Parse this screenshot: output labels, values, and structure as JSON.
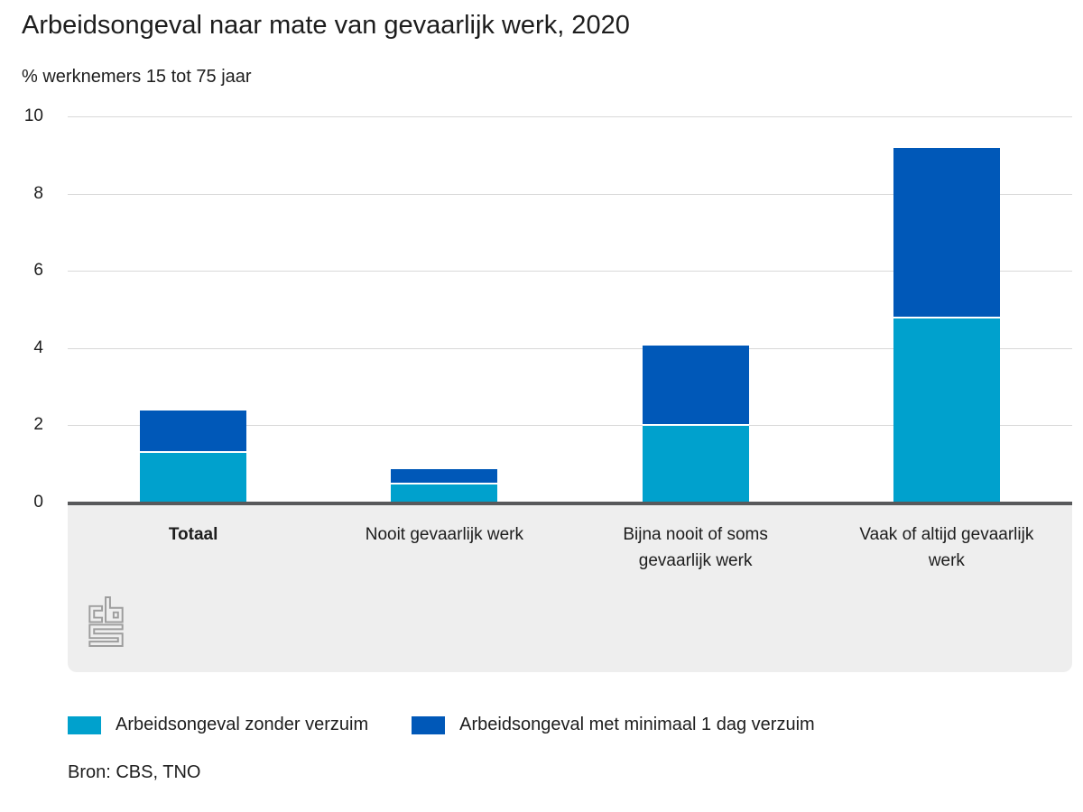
{
  "chart_data": {
    "type": "bar",
    "stacked": true,
    "title": "Arbeidsongeval naar mate van gevaarlijk werk, 2020",
    "subtitle": "% werknemers 15 tot 75 jaar",
    "categories": [
      "Totaal",
      "Nooit gevaarlijk werk",
      "Bijna nooit of soms gevaarlijk werk",
      "Vaak of altijd gevaarlijk werk"
    ],
    "series": [
      {
        "name": "Arbeidsongeval zonder verzuim",
        "color": "#00a1cd",
        "values": [
          1.3,
          0.5,
          2.0,
          4.8
        ]
      },
      {
        "name": "Arbeidsongeval met minimaal 1 dag verzuim",
        "color": "#0058b8",
        "values": [
          1.1,
          0.4,
          2.1,
          4.4
        ]
      }
    ],
    "totals": [
      2.4,
      0.9,
      4.1,
      9.2
    ],
    "ylim": [
      0,
      10
    ],
    "yticks": [
      0,
      2,
      4,
      6,
      8,
      10
    ],
    "grid": true,
    "legend_position": "bottom",
    "source": "Bron: CBS, TNO"
  },
  "logo": {
    "name": "cbs-logo",
    "color": "#9d9d9d"
  },
  "colors": {
    "series_light_blue": "#00a1cd",
    "series_dark_blue": "#0058b8",
    "baseline_gray": "#58595b",
    "band_gray": "#eeeeee",
    "gridline_gray": "#d8d8d8",
    "text": "#1d1d1d"
  }
}
